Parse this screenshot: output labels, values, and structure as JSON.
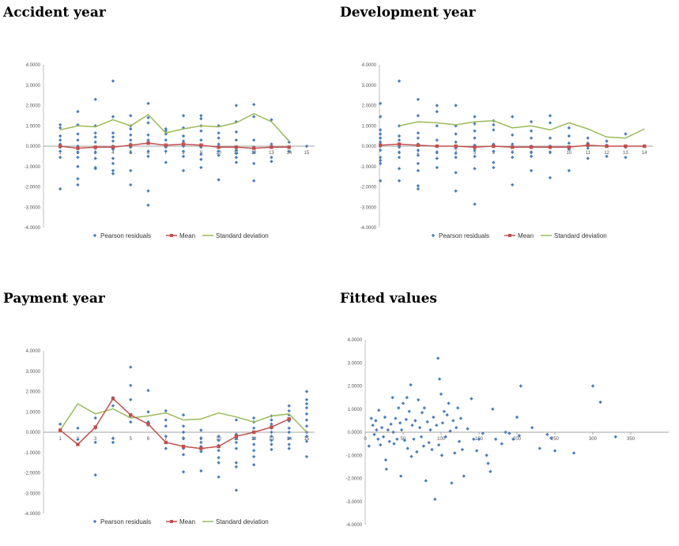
{
  "colors": {
    "points": "#4a7ebb",
    "mean": "#c0504d",
    "sd": "#9bbb59",
    "axis": "#bfbfbf",
    "zero": "#a0a0a0"
  },
  "legend": {
    "points": "Pearson residuals",
    "mean": "Mean",
    "sd": "Standard deviation"
  },
  "chart_data": [
    {
      "type": "scatter",
      "title": "Accident year",
      "ylim": [
        -4,
        4
      ],
      "yticks": [
        "4.0000",
        "3.0000",
        "2.0000",
        "1.0000",
        "0.0000",
        "-1.0000",
        "-2.0000",
        "-3.0000",
        "-4.0000"
      ],
      "x_categories": [
        "1",
        "2",
        "3",
        "4",
        "5",
        "6",
        "7",
        "8",
        "9",
        "10",
        "11",
        "12",
        "13",
        "14",
        "15"
      ],
      "grid": false,
      "legend_position": "bottom",
      "residuals": [
        {
          "x": 1,
          "y": [
            1.05,
            0.9,
            0.5,
            0.3,
            0.1,
            -0.05,
            -0.25,
            -0.55,
            -2.1
          ]
        },
        {
          "x": 2,
          "y": [
            1.7,
            1.05,
            0.6,
            0.3,
            0.0,
            -0.1,
            -0.3,
            -0.55,
            -1.0,
            -1.6,
            -1.9
          ]
        },
        {
          "x": 3,
          "y": [
            2.3,
            1.0,
            0.65,
            0.45,
            0.2,
            -0.1,
            -0.3,
            -0.6,
            -1.05,
            -1.1
          ]
        },
        {
          "x": 4,
          "y": [
            3.2,
            1.45,
            0.65,
            0.45,
            0.25,
            0.0,
            -0.15,
            -0.6,
            -0.85,
            -1.2,
            -1.35
          ]
        },
        {
          "x": 5,
          "y": [
            1.5,
            1.0,
            0.85,
            0.55,
            0.3,
            0.1,
            -0.05,
            -0.3,
            -1.2,
            -1.9
          ]
        },
        {
          "x": 6,
          "y": [
            2.1,
            1.4,
            1.15,
            0.55,
            0.3,
            -0.25,
            -0.5,
            -2.2,
            -2.9
          ]
        },
        {
          "x": 7,
          "y": [
            0.85,
            0.75,
            0.6,
            0.3,
            -0.05,
            -0.25,
            -0.8
          ]
        },
        {
          "x": 8,
          "y": [
            1.5,
            0.9,
            0.5,
            0.25,
            0.0,
            -0.25,
            -0.5,
            -1.2
          ]
        },
        {
          "x": 9,
          "y": [
            1.5,
            1.35,
            1.0,
            0.75,
            0.3,
            -0.05,
            -0.4,
            -0.65,
            -1.05
          ]
        },
        {
          "x": 10,
          "y": [
            1.0,
            0.65,
            0.4,
            0.1,
            -0.25,
            -0.45,
            -1.65
          ]
        },
        {
          "x": 11,
          "y": [
            2.0,
            1.2,
            0.7,
            0.3,
            -0.05,
            -0.2,
            -0.35,
            -0.55,
            -0.8
          ]
        },
        {
          "x": 12,
          "y": [
            2.05,
            1.45,
            0.3,
            -0.05,
            -0.3,
            -0.85,
            -1.7
          ]
        },
        {
          "x": 13,
          "y": [
            1.3,
            0.1,
            -0.05,
            -0.55,
            -0.75
          ]
        },
        {
          "x": 14,
          "y": [
            0.2,
            -0.05,
            -0.25
          ]
        },
        {
          "x": 15,
          "y": [
            0.0
          ]
        }
      ],
      "mean": {
        "x": [
          1,
          2,
          3,
          4,
          5,
          6,
          7,
          8,
          9,
          10,
          11,
          12,
          13,
          14
        ],
        "y": [
          0.0,
          -0.1,
          -0.05,
          -0.05,
          0.05,
          0.15,
          0.05,
          0.1,
          0.05,
          -0.05,
          -0.05,
          -0.1,
          -0.05,
          -0.05
        ]
      },
      "sd": {
        "x": [
          1,
          2,
          3,
          4,
          5,
          6,
          7,
          8,
          9,
          10,
          11,
          12,
          13,
          14
        ],
        "y": [
          0.8,
          1.0,
          0.95,
          1.3,
          1.0,
          1.55,
          0.65,
          0.85,
          1.0,
          0.95,
          1.15,
          1.6,
          1.2,
          0.25
        ]
      }
    },
    {
      "type": "scatter",
      "title": "Development year",
      "ylim": [
        -4,
        4
      ],
      "yticks": [
        "4.0000",
        "3.0000",
        "2.0000",
        "1.0000",
        "0.0000",
        "-1.0000",
        "-2.0000",
        "-3.0000",
        "-4.0000"
      ],
      "x_categories": [
        "1",
        "2",
        "3",
        "4",
        "5",
        "6",
        "7",
        "8",
        "9",
        "10",
        "11",
        "12",
        "13",
        "14"
      ],
      "grid": false,
      "legend_position": "bottom",
      "residuals": [
        {
          "x": 0,
          "y": [
            2.1,
            1.45,
            0.8,
            0.6,
            0.4,
            0.2,
            0.0,
            -0.2,
            -0.55,
            -0.7,
            -0.85,
            -1.7
          ]
        },
        {
          "x": 1,
          "y": [
            3.2,
            1.0,
            0.5,
            0.3,
            0.1,
            -0.05,
            -0.3,
            -0.55,
            -1.1,
            -1.7
          ]
        },
        {
          "x": 2,
          "y": [
            2.3,
            1.5,
            0.65,
            0.4,
            0.1,
            -0.2,
            -0.45,
            -0.85,
            -1.2,
            -1.95,
            -2.1
          ]
        },
        {
          "x": 3,
          "y": [
            2.0,
            1.7,
            1.0,
            0.3,
            0.0,
            -0.3,
            -0.6,
            -1.05
          ]
        },
        {
          "x": 4,
          "y": [
            2.0,
            1.0,
            0.6,
            0.2,
            -0.1,
            -0.35,
            -0.55,
            -1.3,
            -2.2
          ]
        },
        {
          "x": 5,
          "y": [
            1.45,
            1.1,
            0.75,
            0.4,
            0.05,
            -0.2,
            -0.5,
            -1.1,
            -2.85
          ]
        },
        {
          "x": 6,
          "y": [
            1.25,
            1.05,
            0.8,
            0.1,
            -0.25,
            -0.8,
            -1.05
          ]
        },
        {
          "x": 7,
          "y": [
            1.45,
            0.55,
            0.1,
            -0.3,
            -0.55,
            -1.9
          ]
        },
        {
          "x": 8,
          "y": [
            1.2,
            0.75,
            0.4,
            0.0,
            -0.3,
            -0.5,
            -1.2
          ]
        },
        {
          "x": 9,
          "y": [
            1.5,
            1.15,
            0.4,
            0.0,
            -0.3,
            -1.55
          ]
        },
        {
          "x": 10,
          "y": [
            0.9,
            0.5,
            0.15,
            -0.15,
            -1.2
          ]
        },
        {
          "x": 11,
          "y": [
            0.4,
            0.15,
            -0.1,
            -0.6
          ]
        },
        {
          "x": 12,
          "y": [
            0.25,
            0.05,
            -0.5
          ]
        },
        {
          "x": 13,
          "y": [
            0.6,
            -0.05,
            -0.55
          ]
        },
        {
          "x": 14,
          "y": [
            0.0
          ]
        }
      ],
      "mean": {
        "x": [
          0,
          1,
          2,
          3,
          4,
          5,
          6,
          7,
          8,
          9,
          10,
          11,
          12,
          13,
          14
        ],
        "y": [
          0.05,
          0.1,
          0.05,
          0.0,
          0.0,
          -0.05,
          0.0,
          -0.05,
          -0.05,
          -0.05,
          -0.05,
          0.05,
          0.0,
          0.0,
          0.0
        ]
      },
      "sd": {
        "x": [
          1,
          2,
          3,
          4,
          5,
          6,
          7,
          8,
          9,
          10,
          11,
          12,
          13,
          14
        ],
        "y": [
          1.0,
          1.2,
          1.15,
          1.05,
          1.2,
          1.25,
          0.9,
          1.0,
          0.8,
          1.15,
          0.85,
          0.45,
          0.4,
          0.85
        ]
      }
    },
    {
      "type": "scatter",
      "title": "Payment year",
      "ylim": [
        -4,
        4
      ],
      "yticks": [
        "4.0000",
        "3.0000",
        "2.0000",
        "1.0000",
        "0.0000",
        "-1.0000",
        "-2.0000",
        "-3.0000",
        "-4.0000"
      ],
      "x_categories": [
        "1",
        "2",
        "3",
        "4",
        "5",
        "6",
        "7",
        "8",
        "9",
        "10",
        "11",
        "12",
        "13",
        "14",
        "15"
      ],
      "grid": false,
      "legend_position": "bottom",
      "residuals": [
        {
          "x": 1,
          "y": [
            0.4,
            0.1
          ]
        },
        {
          "x": 2,
          "y": [
            0.2,
            -0.35,
            -0.6
          ]
        },
        {
          "x": 3,
          "y": [
            0.7,
            0.2,
            -0.5,
            -2.1
          ]
        },
        {
          "x": 4,
          "y": [
            1.7,
            1.3,
            -0.3,
            -0.5
          ]
        },
        {
          "x": 5,
          "y": [
            3.2,
            2.3,
            1.6,
            0.8,
            0.5
          ]
        },
        {
          "x": 6,
          "y": [
            2.05,
            1.0,
            0.5,
            0.35
          ]
        },
        {
          "x": 7,
          "y": [
            1.05,
            0.6,
            0.3,
            -0.2,
            -0.5,
            -0.8
          ]
        },
        {
          "x": 8,
          "y": [
            0.85,
            0.3,
            0.0,
            -0.3,
            -0.8,
            -1.1,
            -1.95
          ]
        },
        {
          "x": 9,
          "y": [
            0.1,
            -0.3,
            -0.5,
            -0.7,
            -0.95,
            -1.9
          ]
        },
        {
          "x": 10,
          "y": [
            -0.2,
            -0.4,
            -0.65,
            -0.9,
            -1.25,
            -1.5,
            -2.2
          ]
        },
        {
          "x": 11,
          "y": [
            0.6,
            -0.1,
            -0.3,
            -0.5,
            -0.8,
            -1.5,
            -1.7,
            -2.85
          ]
        },
        {
          "x": 12,
          "y": [
            0.7,
            0.5,
            0.2,
            0.0,
            -0.3,
            -0.6,
            -0.9,
            -1.2,
            -1.6
          ]
        },
        {
          "x": 13,
          "y": [
            0.8,
            0.6,
            0.4,
            0.2,
            0.0,
            -0.2,
            -0.4,
            -0.6,
            -0.85
          ]
        },
        {
          "x": 14,
          "y": [
            1.3,
            1.05,
            0.85,
            0.55,
            0.2,
            0.0,
            -0.3,
            -0.6,
            -0.8
          ]
        },
        {
          "x": 15,
          "y": [
            2.0,
            1.6,
            1.4,
            1.2,
            0.9,
            0.6,
            0.3,
            0.0,
            -0.2,
            -0.45,
            -1.2
          ]
        }
      ],
      "mean": {
        "x": [
          1,
          2,
          3,
          4,
          5,
          6,
          7,
          8,
          9,
          10,
          11,
          12,
          13,
          14
        ],
        "y": [
          0.1,
          -0.6,
          0.25,
          1.65,
          0.85,
          0.4,
          -0.5,
          -0.7,
          -0.8,
          -0.7,
          -0.2,
          0.0,
          0.25,
          0.65
        ]
      },
      "sd": {
        "x": [
          1,
          2,
          3,
          4,
          5,
          6,
          7,
          8,
          9,
          10,
          11,
          12,
          13,
          14,
          15
        ],
        "y": [
          0.1,
          1.4,
          0.9,
          1.15,
          0.7,
          0.8,
          0.95,
          0.6,
          0.65,
          0.95,
          0.75,
          0.5,
          0.8,
          0.9,
          0.0
        ]
      }
    },
    {
      "type": "scatter",
      "title": "Fitted values",
      "ylim": [
        -4,
        4
      ],
      "xlim": [
        0,
        400
      ],
      "yticks": [
        "4.0000",
        "3.0000",
        "2.0000",
        "1.0000",
        "0.0000",
        "-1.0000",
        "-2.0000",
        "-3.0000",
        "-4.0000"
      ],
      "xticks": [
        "0",
        "50",
        "100",
        "150",
        "200",
        "250",
        "300",
        "350"
      ],
      "grid": false,
      "points": [
        [
          5,
          -0.6
        ],
        [
          8,
          0.6
        ],
        [
          10,
          0.3
        ],
        [
          12,
          -0.1
        ],
        [
          14,
          0.5
        ],
        [
          15,
          0.1
        ],
        [
          17,
          -0.3
        ],
        [
          18,
          0.95
        ],
        [
          20,
          -0.55
        ],
        [
          22,
          0.2
        ],
        [
          24,
          -0.2
        ],
        [
          26,
          0.65
        ],
        [
          27,
          -1.2
        ],
        [
          28,
          -1.6
        ],
        [
          30,
          0.1
        ],
        [
          32,
          -0.4
        ],
        [
          34,
          0.35
        ],
        [
          36,
          1.5
        ],
        [
          37,
          0.0
        ],
        [
          38,
          -0.5
        ],
        [
          40,
          0.6
        ],
        [
          42,
          -0.3
        ],
        [
          44,
          1.05
        ],
        [
          46,
          0.4
        ],
        [
          47,
          -1.9
        ],
        [
          48,
          0.1
        ],
        [
          50,
          1.25
        ],
        [
          52,
          -0.35
        ],
        [
          54,
          0.55
        ],
        [
          55,
          1.5
        ],
        [
          56,
          -0.7
        ],
        [
          58,
          0.9
        ],
        [
          60,
          2.05
        ],
        [
          61,
          -1.05
        ],
        [
          62,
          0.3
        ],
        [
          64,
          -0.3
        ],
        [
          66,
          0.5
        ],
        [
          68,
          -0.85
        ],
        [
          70,
          1.4
        ],
        [
          72,
          0.2
        ],
        [
          74,
          -0.2
        ],
        [
          75,
          0.85
        ],
        [
          77,
          -0.6
        ],
        [
          78,
          1.05
        ],
        [
          80,
          -2.1
        ],
        [
          82,
          0.45
        ],
        [
          84,
          -0.45
        ],
        [
          86,
          0.1
        ],
        [
          88,
          -0.75
        ],
        [
          90,
          0.65
        ],
        [
          92,
          -2.9
        ],
        [
          94,
          0.3
        ],
        [
          96,
          3.2
        ],
        [
          97,
          -0.55
        ],
        [
          98,
          2.3
        ],
        [
          100,
          1.65
        ],
        [
          101,
          -1.0
        ],
        [
          102,
          0.4
        ],
        [
          104,
          0.9
        ],
        [
          106,
          -0.2
        ],
        [
          108,
          0.75
        ],
        [
          110,
          1.25
        ],
        [
          112,
          0.05
        ],
        [
          114,
          -2.2
        ],
        [
          116,
          0.5
        ],
        [
          118,
          -0.9
        ],
        [
          120,
          0.2
        ],
        [
          122,
          1.05
        ],
        [
          124,
          -0.4
        ],
        [
          126,
          0.6
        ],
        [
          128,
          -0.75
        ],
        [
          130,
          -1.9
        ],
        [
          135,
          0.15
        ],
        [
          140,
          1.45
        ],
        [
          143,
          -0.3
        ],
        [
          147,
          -0.8
        ],
        [
          150,
          -0.3
        ],
        [
          155,
          -0.05
        ],
        [
          160,
          -1.0
        ],
        [
          162,
          -1.35
        ],
        [
          165,
          -1.7
        ],
        [
          168,
          1.0
        ],
        [
          172,
          -0.3
        ],
        [
          180,
          -0.5
        ],
        [
          185,
          0.0
        ],
        [
          190,
          -0.05
        ],
        [
          195,
          -0.3
        ],
        [
          200,
          0.65
        ],
        [
          203,
          -0.15
        ],
        [
          205,
          2.0
        ],
        [
          220,
          0.2
        ],
        [
          230,
          -0.7
        ],
        [
          240,
          -0.1
        ],
        [
          245,
          -0.25
        ],
        [
          250,
          -0.8
        ],
        [
          275,
          -0.9
        ],
        [
          300,
          2.0
        ],
        [
          310,
          1.3
        ],
        [
          330,
          -0.2
        ]
      ]
    }
  ]
}
